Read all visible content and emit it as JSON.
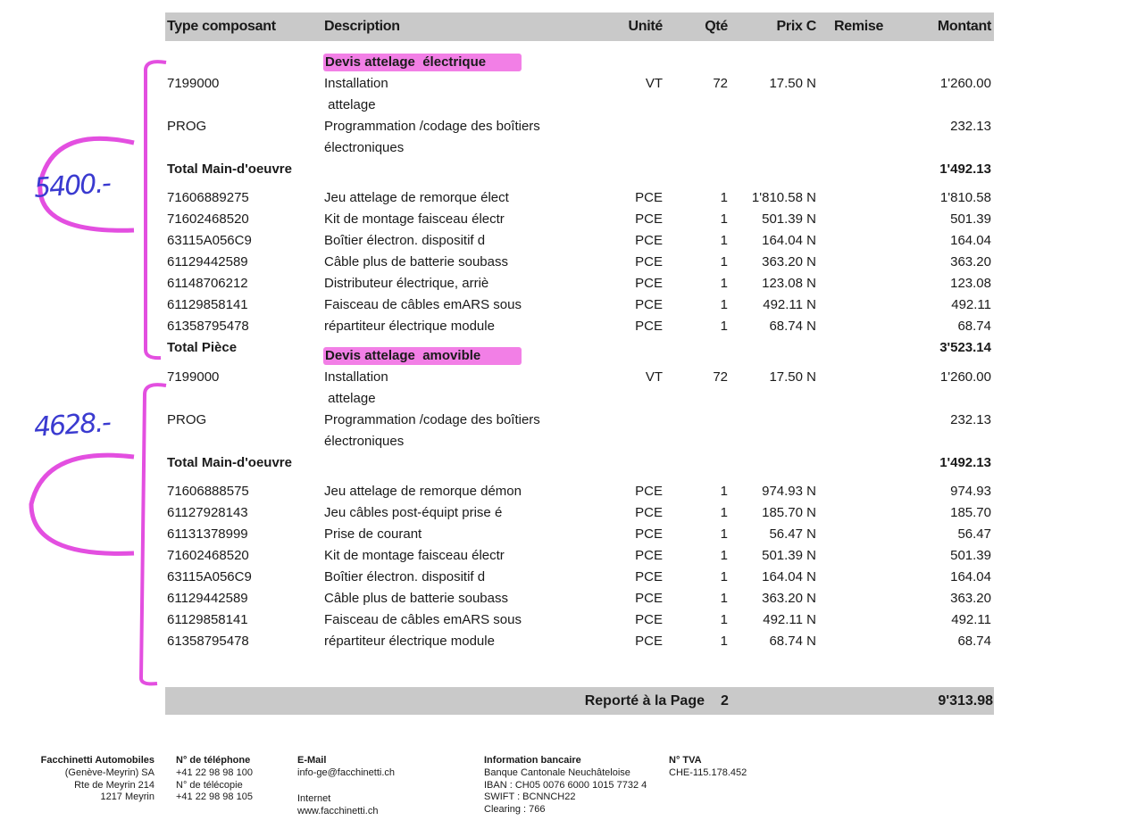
{
  "header": {
    "columns": [
      "Type composant",
      "Description",
      "Unité",
      "Qté",
      "Prix C",
      "Remise",
      "Montant"
    ]
  },
  "sections": [
    {
      "title": "Devis attelage  électrique",
      "annotation": "5400.-",
      "rows": [
        {
          "code": "7199000",
          "description": [
            "Installation",
            " attelage"
          ],
          "unit": "VT",
          "qty": "72",
          "price": "17.50 N",
          "amount": "1'260.00"
        },
        {
          "code": "PROG",
          "description": [
            "Programmation /codage des boîtiers",
            "électroniques"
          ],
          "amount": "232.13"
        },
        {
          "label": "Total Main-d'oeuvre",
          "amount": "1'492.13"
        },
        {
          "code": "71606889275",
          "description": [
            "Jeu attelage de remorque élect"
          ],
          "unit": "PCE",
          "qty": "1",
          "price": "1'810.58 N",
          "amount": "1'810.58"
        },
        {
          "code": "71602468520",
          "description": [
            "Kit de montage faisceau électr"
          ],
          "unit": "PCE",
          "qty": "1",
          "price": "501.39 N",
          "amount": "501.39"
        },
        {
          "code": "63115A056C9",
          "description": [
            "Boîtier électron. dispositif d"
          ],
          "unit": "PCE",
          "qty": "1",
          "price": "164.04 N",
          "amount": "164.04"
        },
        {
          "code": "61129442589",
          "description": [
            "Câble plus de batterie soubass"
          ],
          "unit": "PCE",
          "qty": "1",
          "price": "363.20 N",
          "amount": "363.20"
        },
        {
          "code": "61148706212",
          "description": [
            "Distributeur électrique, arriè"
          ],
          "unit": "PCE",
          "qty": "1",
          "price": "123.08 N",
          "amount": "123.08"
        },
        {
          "code": "61129858141",
          "description": [
            "Faisceau de câbles emARS sous"
          ],
          "unit": "PCE",
          "qty": "1",
          "price": "492.11 N",
          "amount": "492.11"
        },
        {
          "code": "61358795478",
          "description": [
            "répartiteur électrique module"
          ],
          "unit": "PCE",
          "qty": "1",
          "price": "68.74 N",
          "amount": "68.74"
        },
        {
          "label": "Total Pièce",
          "amount": "3'523.14"
        }
      ]
    },
    {
      "title": "Devis attelage  amovible",
      "annotation": "4628.-",
      "rows": [
        {
          "code": "7199000",
          "description": [
            "Installation",
            " attelage"
          ],
          "unit": "VT",
          "qty": "72",
          "price": "17.50 N",
          "amount": "1'260.00"
        },
        {
          "code": "PROG",
          "description": [
            "Programmation /codage des boîtiers",
            "électroniques"
          ],
          "amount": "232.13"
        },
        {
          "label": "Total Main-d'oeuvre",
          "amount": "1'492.13"
        },
        {
          "code": "71606888575",
          "description": [
            "Jeu attelage de remorque démon"
          ],
          "unit": "PCE",
          "qty": "1",
          "price": "974.93 N",
          "amount": "974.93"
        },
        {
          "code": "61127928143",
          "description": [
            "Jeu câbles post-équipt prise é"
          ],
          "unit": "PCE",
          "qty": "1",
          "price": "185.70 N",
          "amount": "185.70"
        },
        {
          "code": "61131378999",
          "description": [
            "Prise de courant"
          ],
          "unit": "PCE",
          "qty": "1",
          "price": "56.47 N",
          "amount": "56.47"
        },
        {
          "code": "71602468520",
          "description": [
            "Kit de montage faisceau électr"
          ],
          "unit": "PCE",
          "qty": "1",
          "price": "501.39 N",
          "amount": "501.39"
        },
        {
          "code": "63115A056C9",
          "description": [
            "Boîtier électron. dispositif d"
          ],
          "unit": "PCE",
          "qty": "1",
          "price": "164.04 N",
          "amount": "164.04"
        },
        {
          "code": "61129442589",
          "description": [
            "Câble plus de batterie soubass"
          ],
          "unit": "PCE",
          "qty": "1",
          "price": "363.20 N",
          "amount": "363.20"
        },
        {
          "code": "61129858141",
          "description": [
            "Faisceau de câbles emARS sous"
          ],
          "unit": "PCE",
          "qty": "1",
          "price": "492.11 N",
          "amount": "492.11"
        },
        {
          "code": "61358795478",
          "description": [
            "répartiteur électrique module"
          ],
          "unit": "PCE",
          "qty": "1",
          "price": "68.74 N",
          "amount": "68.74"
        }
      ]
    }
  ],
  "carry": {
    "label": "Reporté à la Page",
    "page": "2",
    "amount": "9'313.98"
  },
  "footer": {
    "columns": [
      {
        "heading": "Facchinetti Automobiles",
        "lines": [
          "(Genève-Meyrin) SA",
          "Rte de Meyrin 214",
          "1217 Meyrin"
        ]
      },
      {
        "heading": "N° de téléphone",
        "lines": [
          "+41 22 98 98 100",
          "N° de télécopie",
          "+41 22 98 98 105"
        ]
      },
      {
        "heading": "E-Mail",
        "lines": [
          "info-ge@facchinetti.ch"
        ],
        "extra": [
          "Internet",
          "www.facchinetti.ch"
        ]
      },
      {
        "heading": "Information bancaire",
        "lines": [
          "Banque Cantonale Neuchâteloise",
          "IBAN : CH05 0076 6000 1015 7732 4",
          "SWIFT : BCNNCH22",
          "Clearing : 766"
        ]
      },
      {
        "heading": "N° TVA",
        "lines": [
          "CHE-115.178.452"
        ]
      }
    ]
  }
}
